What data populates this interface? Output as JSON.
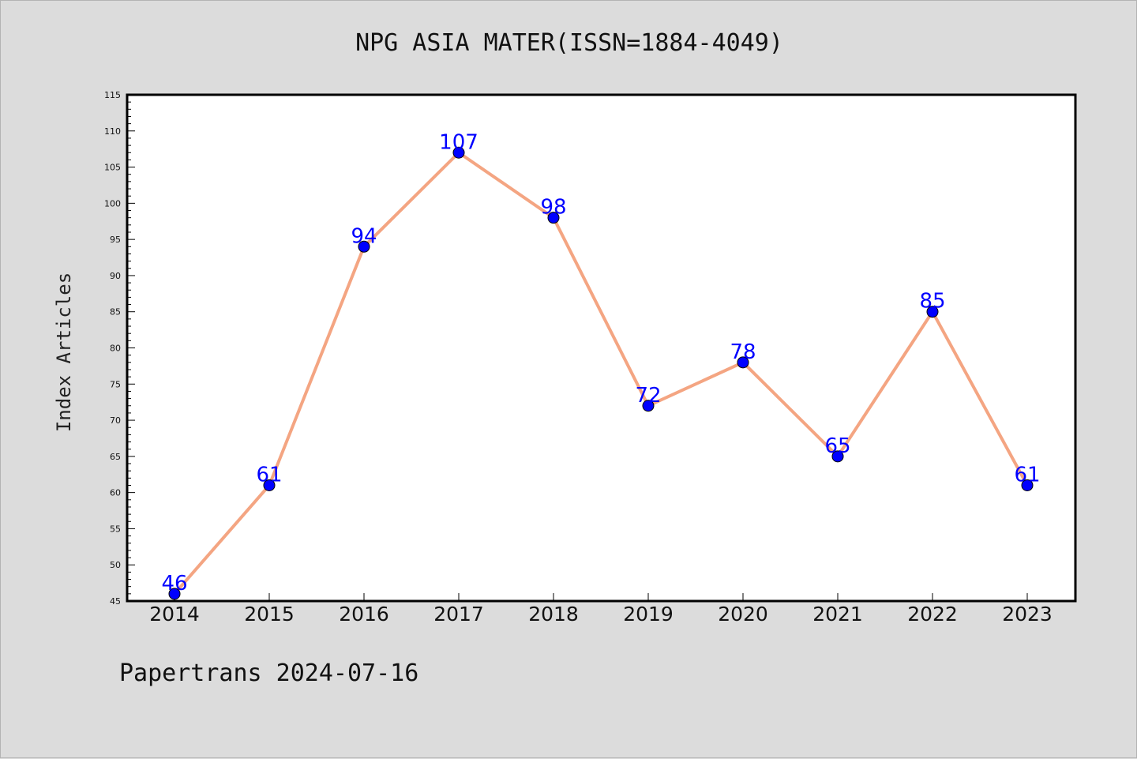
{
  "chart_data": {
    "type": "line",
    "title": "NPG ASIA MATER(ISSN=1884-4049)",
    "xlabel": "",
    "ylabel": "Index Articles",
    "categories": [
      "2014",
      "2015",
      "2016",
      "2017",
      "2018",
      "2019",
      "2020",
      "2021",
      "2022",
      "2023"
    ],
    "series": [
      {
        "values": [
          46,
          61,
          94,
          107,
          98,
          72,
          78,
          65,
          85,
          61
        ]
      }
    ],
    "ylim": [
      45,
      115
    ],
    "y_ticks": [
      45,
      50,
      55,
      60,
      65,
      70,
      75,
      80,
      85,
      90,
      95,
      100,
      105,
      110,
      115
    ],
    "grid": false,
    "colors": {
      "line": "#f4a582",
      "marker": "#0000ff",
      "label": "#0000ff",
      "background": "#dcdcdc",
      "plot_bg": "#ffffff"
    }
  },
  "footer": {
    "text": "Papertrans 2024-07-16"
  }
}
